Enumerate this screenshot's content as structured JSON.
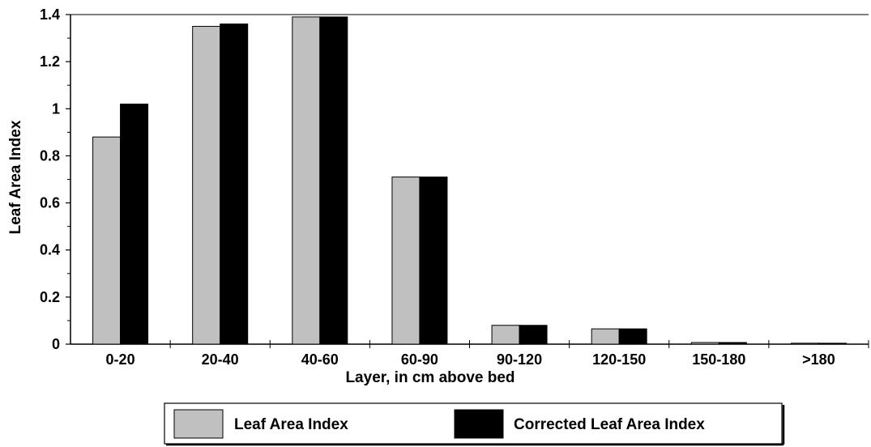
{
  "chart_data": {
    "type": "bar",
    "title": "",
    "xlabel": "Layer, in cm above bed",
    "ylabel": "Leaf Area Index",
    "ylim": [
      0,
      1.4
    ],
    "yticks": [
      "0",
      "0.2",
      "0.4",
      "0.6",
      "0.8",
      "1",
      "1.2",
      "1.4"
    ],
    "categories": [
      "0-20",
      "20-40",
      "40-60",
      "60-90",
      "90-120",
      "120-150",
      "150-180",
      ">180"
    ],
    "series": [
      {
        "name": "Leaf Area Index",
        "color": "#c0c0c0",
        "values": [
          0.88,
          1.35,
          1.39,
          0.71,
          0.08,
          0.065,
          0.007,
          0.004
        ]
      },
      {
        "name": "Corrected Leaf Area Index",
        "color": "#000000",
        "values": [
          1.02,
          1.36,
          1.39,
          0.71,
          0.08,
          0.065,
          0.007,
          0.004
        ]
      }
    ],
    "grid": false,
    "legend_position": "bottom"
  }
}
